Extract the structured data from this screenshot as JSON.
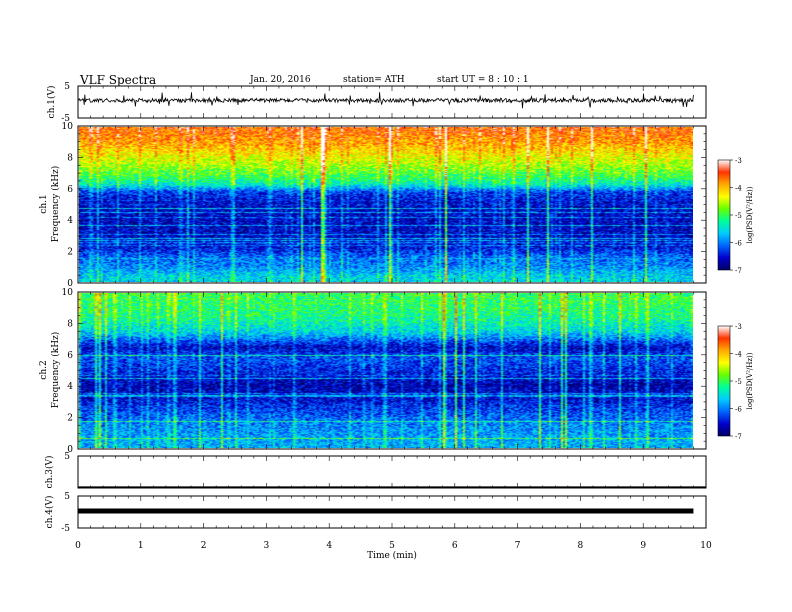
{
  "header": {
    "title": "VLF  Spectra",
    "date": "Jan. 20, 2016",
    "station": "station= ATH",
    "start": "start  UT =   8  : 10 : 1"
  },
  "colors": {
    "spectrogram_stops": [
      "#000066",
      "#0000cc",
      "#0066ff",
      "#00ccff",
      "#00ff99",
      "#66ff00",
      "#ffff00",
      "#ffaa00",
      "#ff3300",
      "#ffffff"
    ]
  },
  "chart_data": [
    {
      "type": "line",
      "name": "ch1",
      "ylabel": "ch.1(V)",
      "ylim": [
        -5,
        5
      ],
      "yticks": [
        "5",
        "-5"
      ],
      "trace": "noisy signal around +0.5 V, spikes to about +2.5 V and -2 V",
      "x_range_min": [
        0,
        9.8
      ]
    },
    {
      "type": "heatmap",
      "name": "ch1-spectrogram",
      "ylabel": "Frequency  (kHz)",
      "channel_label": "ch.1",
      "ylim": [
        0,
        10
      ],
      "yticks": [
        "0",
        "2",
        "4",
        "6",
        "8",
        "10"
      ],
      "x_range_min": [
        0,
        9.8
      ],
      "colorbar": {
        "label": "log(PSD(V²/Hz))",
        "range": [
          -7,
          -3
        ],
        "ticks": [
          "-3",
          "-4",
          "-5",
          "-6",
          "-7"
        ]
      },
      "band_profile_log_psd": [
        {
          "f": 0.3,
          "v": -5.6
        },
        {
          "f": 1.0,
          "v": -6.0
        },
        {
          "f": 1.6,
          "v": -6.1
        },
        {
          "f": 2.2,
          "v": -6.5
        },
        {
          "f": 3.0,
          "v": -6.6
        },
        {
          "f": 4.0,
          "v": -6.6
        },
        {
          "f": 5.0,
          "v": -6.6
        },
        {
          "f": 5.8,
          "v": -6.3
        },
        {
          "f": 6.3,
          "v": -5.4
        },
        {
          "f": 7.0,
          "v": -4.9
        },
        {
          "f": 8.0,
          "v": -4.4
        },
        {
          "f": 9.0,
          "v": -3.9
        },
        {
          "f": 10.0,
          "v": -3.6
        }
      ]
    },
    {
      "type": "heatmap",
      "name": "ch2-spectrogram",
      "ylabel": "Frequency  (kHz)",
      "channel_label": "ch.2",
      "ylim": [
        0,
        10
      ],
      "yticks": [
        "0",
        "2",
        "4",
        "6",
        "8",
        "10"
      ],
      "x_range_min": [
        0,
        9.8
      ],
      "colorbar": {
        "label": "log(PSD(V²/Hz))",
        "range": [
          -7,
          -3
        ],
        "ticks": [
          "-3",
          "-4",
          "-5",
          "-6",
          "-7"
        ]
      },
      "band_profile_log_psd": [
        {
          "f": 0.3,
          "v": -5.8
        },
        {
          "f": 1.0,
          "v": -5.9
        },
        {
          "f": 1.6,
          "v": -6.0
        },
        {
          "f": 2.2,
          "v": -6.2
        },
        {
          "f": 3.0,
          "v": -6.5
        },
        {
          "f": 4.0,
          "v": -6.7
        },
        {
          "f": 5.0,
          "v": -6.4
        },
        {
          "f": 5.8,
          "v": -6.2
        },
        {
          "f": 6.5,
          "v": -6.6
        },
        {
          "f": 7.5,
          "v": -5.6
        },
        {
          "f": 8.5,
          "v": -5.2
        },
        {
          "f": 10.0,
          "v": -5.0
        }
      ]
    },
    {
      "type": "line",
      "name": "ch3",
      "ylabel": "ch.3(V)",
      "ylim": [
        -5,
        5
      ],
      "yticks": [
        "5"
      ],
      "trace": "flat line at -5 V (bottom edge of panel)"
    },
    {
      "type": "line",
      "name": "ch4",
      "ylabel": "ch.4(V)",
      "ylim": [
        -5,
        5
      ],
      "yticks": [
        "5",
        "-5"
      ],
      "trace": "thick flat line at 0 V",
      "x_range_min": [
        0,
        9.8
      ]
    }
  ],
  "xaxis": {
    "label": "Time  (min)",
    "xlim": [
      0,
      10
    ],
    "ticks": [
      "0",
      "1",
      "2",
      "3",
      "4",
      "5",
      "6",
      "7",
      "8",
      "9",
      "10"
    ]
  }
}
